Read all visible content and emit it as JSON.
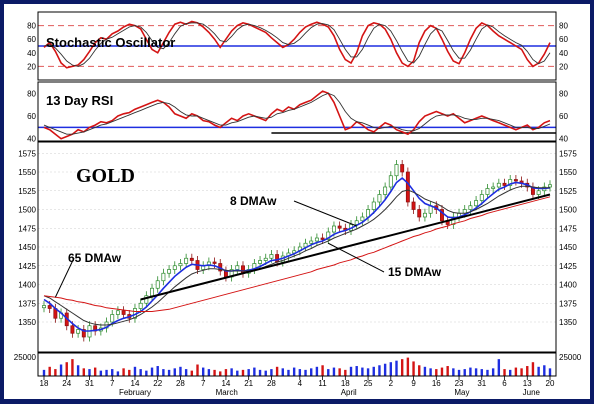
{
  "chart_data": [
    {
      "type": "line",
      "panel": "stochastic",
      "title": "Stochastic Oscillator",
      "yticks": [
        20,
        40,
        60,
        80
      ],
      "ylim": [
        0,
        100
      ],
      "reference_lines": [
        20,
        50,
        80
      ],
      "series": [
        {
          "role": "main",
          "color": "#d41414",
          "values": [
            48,
            55,
            42,
            25,
            18,
            20,
            22,
            30,
            42,
            55,
            62,
            60,
            68,
            72,
            78,
            82,
            80,
            75,
            60,
            45,
            40,
            55,
            70,
            82,
            85,
            82,
            86,
            84,
            78,
            70,
            60,
            48,
            60,
            72,
            80,
            84,
            82,
            78,
            74,
            70,
            62,
            55,
            48,
            52,
            60,
            70,
            78,
            82,
            85,
            82,
            78,
            65,
            45,
            30,
            25,
            40,
            65,
            80,
            84,
            82,
            75,
            60,
            40,
            25,
            20,
            28,
            55,
            72,
            80,
            76,
            60,
            42,
            28,
            24,
            40,
            60,
            76,
            84,
            80,
            72,
            65,
            60,
            55,
            50,
            45,
            30,
            20,
            25,
            38,
            55
          ]
        },
        {
          "role": "signal",
          "color": "#333333",
          "values": [
            50,
            52,
            47,
            38,
            28,
            22,
            20,
            24,
            32,
            44,
            54,
            60,
            63,
            68,
            73,
            78,
            80,
            78,
            70,
            58,
            48,
            46,
            55,
            68,
            79,
            83,
            84,
            84,
            82,
            76,
            68,
            58,
            56,
            64,
            74,
            80,
            82,
            80,
            77,
            73,
            68,
            62,
            55,
            52,
            54,
            60,
            69,
            77,
            82,
            83,
            81,
            74,
            60,
            45,
            34,
            34,
            45,
            62,
            76,
            82,
            80,
            72,
            58,
            42,
            28,
            25,
            35,
            52,
            68,
            76,
            72,
            58,
            43,
            32,
            32,
            44,
            60,
            75,
            81,
            78,
            71,
            65,
            60,
            55,
            51,
            42,
            30,
            24,
            28,
            40
          ]
        }
      ]
    },
    {
      "type": "line",
      "panel": "rsi",
      "title": "13 Day RSI",
      "yticks": [
        40,
        60,
        80
      ],
      "ylim": [
        38,
        90
      ],
      "reference_lines": [
        50
      ],
      "support_line": 45,
      "series": [
        {
          "role": "main",
          "color": "#d41414",
          "values": [
            50,
            48,
            44,
            40,
            42,
            44,
            48,
            46,
            50,
            52,
            55,
            54,
            56,
            60,
            62,
            63,
            66,
            68,
            70,
            72,
            74,
            72,
            68,
            62,
            60,
            58,
            62,
            60,
            56,
            55,
            52,
            50,
            54,
            58,
            56,
            60,
            62,
            60,
            58,
            56,
            62,
            66,
            64,
            68,
            66,
            70,
            72,
            74,
            78,
            82,
            80,
            72,
            60,
            48,
            50,
            55,
            52,
            48,
            46,
            50,
            54,
            52,
            48,
            46,
            44,
            48,
            55,
            60,
            62,
            64,
            62,
            60,
            62,
            58,
            54,
            56,
            58,
            60,
            58,
            56,
            54,
            52,
            50,
            48,
            50,
            52,
            48,
            50,
            54,
            56
          ]
        },
        {
          "role": "signal",
          "color": "#333333",
          "values": [
            52,
            50,
            48,
            46,
            44,
            44,
            45,
            46,
            48,
            50,
            52,
            53,
            55,
            57,
            59,
            61,
            63,
            65,
            67,
            69,
            71,
            72,
            71,
            68,
            64,
            61,
            60,
            60,
            58,
            56,
            54,
            52,
            52,
            54,
            55,
            57,
            59,
            60,
            59,
            58,
            59,
            62,
            63,
            65,
            66,
            68,
            70,
            72,
            75,
            78,
            80,
            78,
            72,
            64,
            58,
            55,
            54,
            52,
            50,
            49,
            50,
            51,
            50,
            48,
            47,
            47,
            49,
            53,
            57,
            60,
            61,
            61,
            61,
            60,
            58,
            57,
            57,
            58,
            58,
            57,
            56,
            54,
            52,
            50,
            50,
            50,
            49,
            49,
            51,
            53
          ]
        }
      ]
    },
    {
      "type": "candlestick",
      "panel": "price",
      "title": "GOLD",
      "yticks": [
        1350,
        1375,
        1400,
        1425,
        1450,
        1475,
        1500,
        1525,
        1550,
        1575
      ],
      "ylim": [
        1310,
        1590
      ],
      "xticks": [
        "18",
        "24",
        "31",
        "7",
        "14",
        "22",
        "28",
        "7",
        "14",
        "21",
        "28",
        "4",
        "11",
        "18",
        "25",
        "2",
        "9",
        "16",
        "23",
        "31",
        "6",
        "13",
        "20"
      ],
      "months": [
        "February",
        "March",
        "April",
        "May",
        "June"
      ],
      "annotations": [
        "8 DMAw",
        "15 DMAw",
        "65 DMAw"
      ],
      "close": [
        1372,
        1368,
        1355,
        1362,
        1345,
        1335,
        1340,
        1330,
        1345,
        1338,
        1342,
        1350,
        1360,
        1365,
        1360,
        1355,
        1368,
        1375,
        1385,
        1395,
        1405,
        1415,
        1420,
        1425,
        1428,
        1435,
        1432,
        1420,
        1425,
        1430,
        1428,
        1418,
        1410,
        1420,
        1425,
        1415,
        1420,
        1428,
        1432,
        1435,
        1440,
        1430,
        1438,
        1442,
        1445,
        1450,
        1455,
        1458,
        1462,
        1460,
        1470,
        1478,
        1475,
        1472,
        1480,
        1485,
        1490,
        1500,
        1510,
        1520,
        1530,
        1545,
        1560,
        1550,
        1510,
        1500,
        1490,
        1495,
        1505,
        1500,
        1485,
        1480,
        1490,
        1495,
        1500,
        1505,
        1512,
        1520,
        1528,
        1530,
        1535,
        1532,
        1540,
        1538,
        1535,
        1530,
        1520,
        1525,
        1530,
        1533
      ],
      "series": [
        {
          "name": "8 DMAw",
          "color": "#1e2ee0",
          "values": [
            1380,
            1375,
            1368,
            1362,
            1355,
            1348,
            1342,
            1338,
            1338,
            1339,
            1340,
            1343,
            1348,
            1352,
            1355,
            1357,
            1360,
            1364,
            1370,
            1378,
            1386,
            1395,
            1403,
            1411,
            1417,
            1423,
            1427,
            1426,
            1425,
            1426,
            1425,
            1422,
            1418,
            1418,
            1419,
            1418,
            1419,
            1421,
            1424,
            1428,
            1432,
            1433,
            1435,
            1438,
            1441,
            1445,
            1449,
            1453,
            1456,
            1458,
            1462,
            1467,
            1470,
            1472,
            1475,
            1479,
            1483,
            1489,
            1496,
            1504,
            1513,
            1524,
            1536,
            1542,
            1535,
            1525,
            1515,
            1508,
            1505,
            1502,
            1496,
            1490,
            1489,
            1490,
            1493,
            1497,
            1502,
            1508,
            1515,
            1521,
            1527,
            1530,
            1534,
            1536,
            1535,
            1533,
            1529,
            1528,
            1528,
            1529
          ]
        },
        {
          "name": "15 DMAw",
          "color": "#333333",
          "values": [
            1385,
            1382,
            1377,
            1372,
            1367,
            1362,
            1357,
            1352,
            1349,
            1347,
            1346,
            1346,
            1347,
            1349,
            1351,
            1353,
            1356,
            1360,
            1365,
            1370,
            1376,
            1383,
            1390,
            1397,
            1403,
            1409,
            1414,
            1417,
            1419,
            1421,
            1421,
            1420,
            1419,
            1418,
            1418,
            1418,
            1418,
            1419,
            1421,
            1424,
            1427,
            1430,
            1432,
            1435,
            1438,
            1441,
            1445,
            1448,
            1452,
            1455,
            1458,
            1462,
            1465,
            1468,
            1471,
            1474,
            1478,
            1482,
            1487,
            1493,
            1500,
            1508,
            1517,
            1524,
            1526,
            1523,
            1519,
            1514,
            1511,
            1508,
            1504,
            1499,
            1496,
            1495,
            1495,
            1497,
            1500,
            1504,
            1508,
            1513,
            1518,
            1522,
            1526,
            1529,
            1531,
            1531,
            1530,
            1529,
            1529,
            1529
          ]
        },
        {
          "name": "65 DMAw",
          "color": "#d41414",
          "values": [
            1385,
            1384,
            1383,
            1382,
            1380,
            1379,
            1377,
            1376,
            1374,
            1372,
            1371,
            1369,
            1368,
            1367,
            1366,
            1365,
            1364,
            1364,
            1364,
            1364,
            1365,
            1366,
            1367,
            1369,
            1371,
            1373,
            1375,
            1377,
            1379,
            1381,
            1383,
            1385,
            1387,
            1389,
            1391,
            1393,
            1395,
            1397,
            1399,
            1401,
            1403,
            1405,
            1407,
            1409,
            1411,
            1413,
            1415,
            1417,
            1420,
            1422,
            1424,
            1426,
            1429,
            1431,
            1433,
            1436,
            1438,
            1441,
            1443,
            1446,
            1449,
            1452,
            1455,
            1458,
            1461,
            1464,
            1466,
            1469,
            1471,
            1474,
            1476,
            1478,
            1481,
            1483,
            1485,
            1488,
            1490,
            1492,
            1495,
            1497,
            1499,
            1501,
            1503,
            1505,
            1507,
            1509,
            1511,
            1513,
            1515,
            1517
          ]
        }
      ]
    },
    {
      "type": "bar",
      "panel": "volume",
      "yticks": [
        25000
      ],
      "ylim": [
        0,
        30000
      ],
      "values": [
        8000,
        12000,
        9000,
        15000,
        18000,
        22000,
        14000,
        10000,
        9000,
        11000,
        7000,
        8000,
        9000,
        6000,
        10000,
        8000,
        12000,
        9000,
        7000,
        11000,
        13000,
        9000,
        8000,
        10000,
        12000,
        9000,
        7000,
        15000,
        11000,
        9000,
        8000,
        6000,
        9000,
        10000,
        7000,
        8000,
        9000,
        11000,
        8000,
        7000,
        9000,
        12000,
        10000,
        8000,
        11000,
        9000,
        8000,
        10000,
        12000,
        14000,
        9000,
        11000,
        10000,
        8000,
        12000,
        13000,
        11000,
        10000,
        12000,
        14000,
        16000,
        18000,
        20000,
        22000,
        24000,
        19000,
        14000,
        12000,
        10000,
        9000,
        11000,
        13000,
        10000,
        8000,
        9000,
        11000,
        10000,
        9000,
        8000,
        10000,
        22000,
        9000,
        8000,
        11000,
        10000,
        13000,
        18000,
        12000,
        14000,
        10000
      ]
    }
  ]
}
